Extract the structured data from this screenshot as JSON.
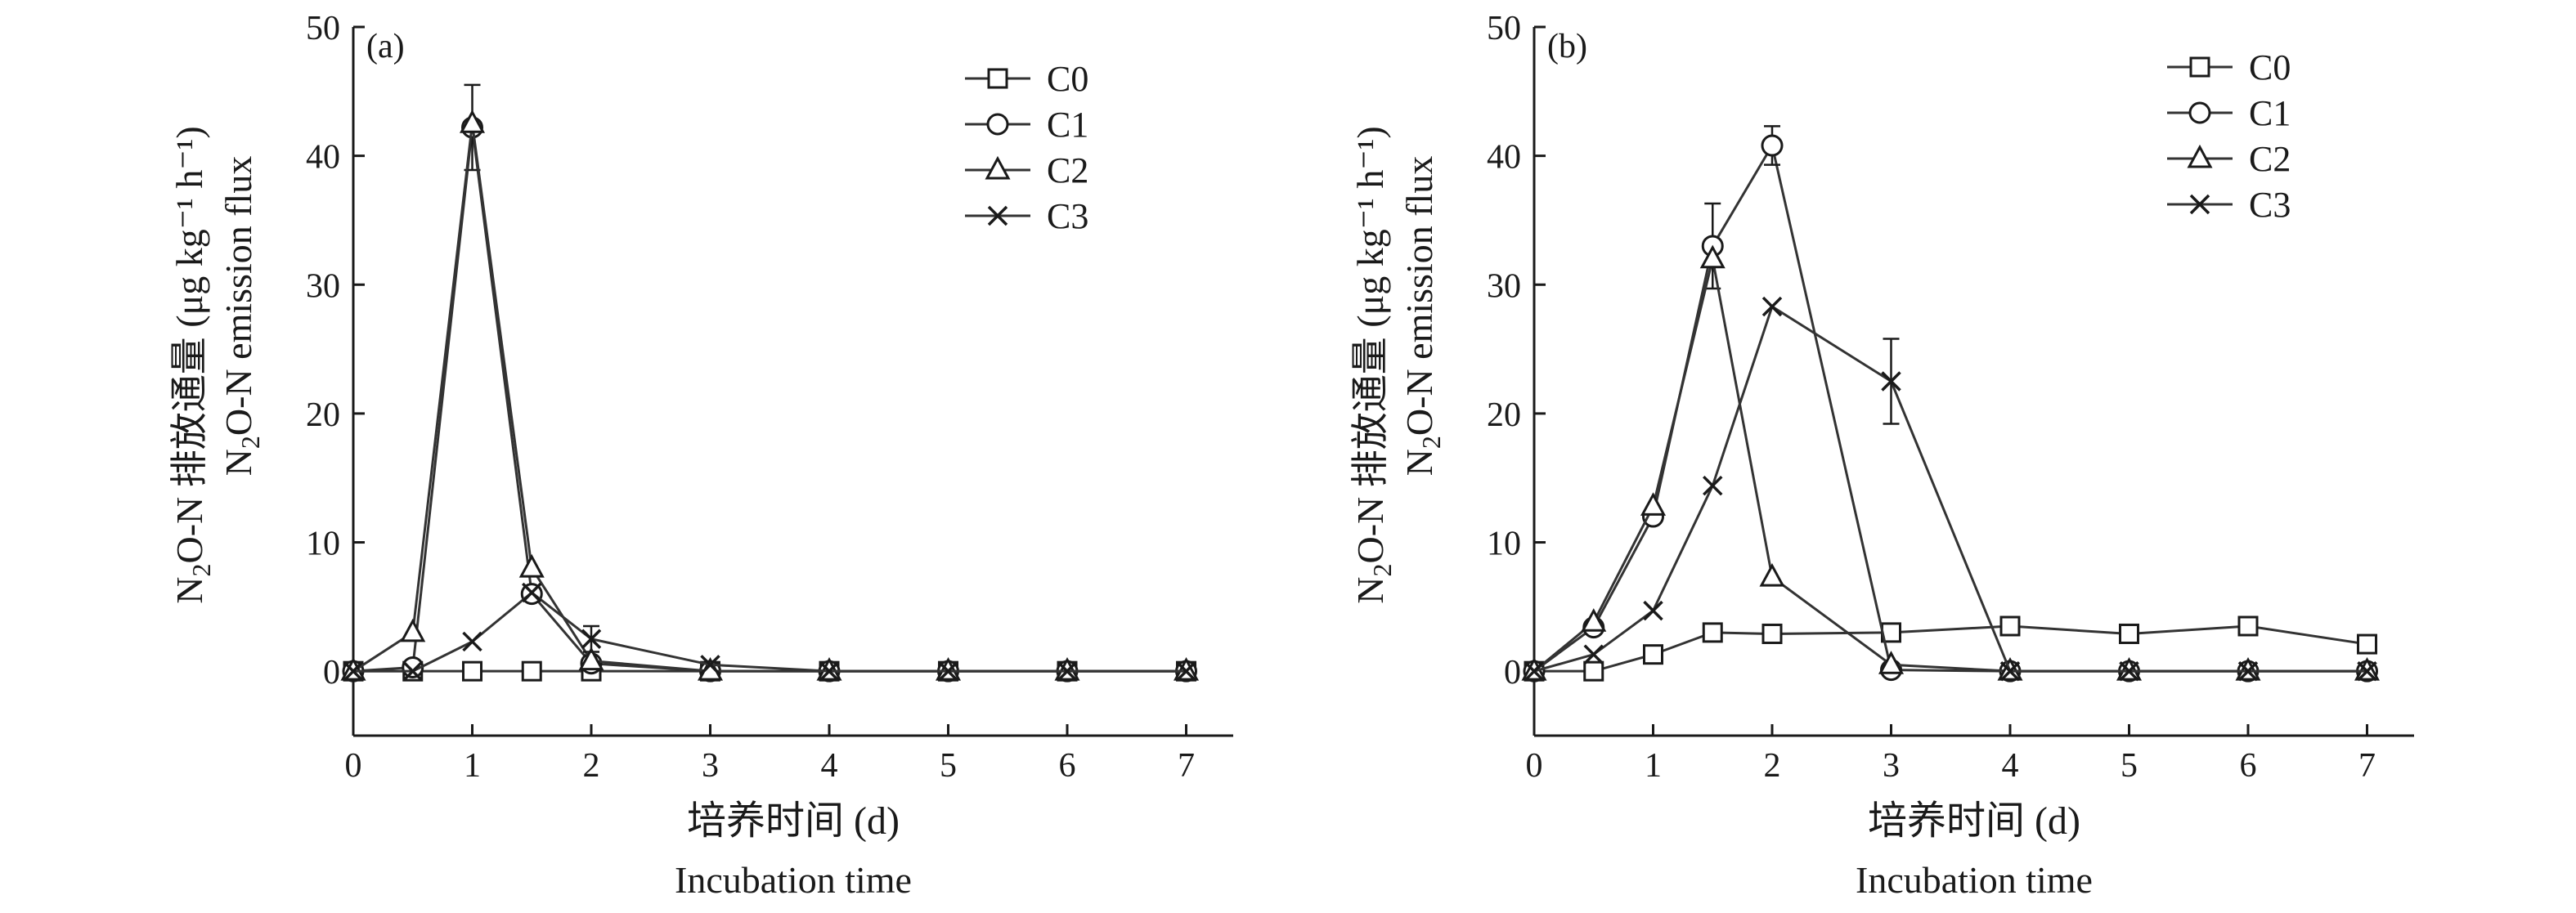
{
  "chart_data": [
    {
      "type": "line",
      "panel_label": "(a)",
      "ylabel_cn": "排放通量",
      "ylabel_en": "emission flux",
      "ylabel_unit": "(μg kg⁻¹ h⁻¹)",
      "xlabel_cn": "培养时间 (d)",
      "xlabel_en": "Incubation time",
      "xlim": [
        0,
        7.5
      ],
      "ylim": [
        -5,
        50
      ],
      "xticks": [
        0,
        1,
        2,
        3,
        4,
        5,
        6,
        7
      ],
      "yticks": [
        0,
        10,
        20,
        30,
        40,
        50
      ],
      "x": [
        0,
        0.5,
        1,
        1.5,
        2,
        3,
        4,
        5,
        6,
        7
      ],
      "legend_position": "top-right",
      "series": [
        {
          "name": "C0",
          "marker": "square",
          "values": [
            0,
            0,
            0,
            0,
            0,
            0,
            0,
            0,
            0,
            0
          ]
        },
        {
          "name": "C1",
          "marker": "circle",
          "values": [
            0,
            0.3,
            42.2,
            6.0,
            0.6,
            0,
            0,
            0,
            0,
            0
          ],
          "err": [
            0,
            0,
            3.3,
            0.5,
            0,
            0,
            0,
            0,
            0,
            0
          ]
        },
        {
          "name": "C2",
          "marker": "triangle",
          "values": [
            0,
            3.0,
            42.5,
            8.0,
            0.8,
            0,
            0,
            0,
            0,
            0
          ]
        },
        {
          "name": "C3",
          "marker": "x",
          "values": [
            0,
            0,
            2.3,
            6.1,
            2.5,
            0.5,
            0,
            0,
            0,
            0
          ],
          "err": [
            0,
            0,
            0,
            0,
            1.0,
            0,
            0,
            0,
            0,
            0
          ]
        }
      ]
    },
    {
      "type": "line",
      "panel_label": "(b)",
      "ylabel_cn": "排放通量",
      "ylabel_en": "emission flux",
      "ylabel_unit": "(μg kg⁻¹ h⁻¹)",
      "xlabel_cn": "培养时间 (d)",
      "xlabel_en": "Incubation time",
      "xlim": [
        0,
        7.5
      ],
      "ylim": [
        -5,
        50
      ],
      "xticks": [
        0,
        1,
        2,
        3,
        4,
        5,
        6,
        7
      ],
      "yticks": [
        0,
        10,
        20,
        30,
        40,
        50
      ],
      "x": [
        0,
        0.5,
        1,
        1.5,
        2,
        3,
        4,
        5,
        6,
        7
      ],
      "legend_position": "top-right",
      "series": [
        {
          "name": "C0",
          "marker": "square",
          "values": [
            0,
            0,
            1.3,
            3.0,
            2.9,
            3.0,
            3.5,
            2.9,
            3.5,
            2.1
          ]
        },
        {
          "name": "C1",
          "marker": "circle",
          "values": [
            0,
            3.4,
            12.0,
            33.0,
            40.8,
            0.1,
            0,
            0,
            0,
            0
          ],
          "err": [
            0,
            0,
            0,
            3.3,
            1.5,
            0,
            0,
            0,
            0,
            0
          ]
        },
        {
          "name": "C2",
          "marker": "triangle",
          "values": [
            0,
            3.8,
            12.8,
            32.0,
            7.3,
            0.5,
            0,
            0,
            0,
            0
          ]
        },
        {
          "name": "C3",
          "marker": "x",
          "values": [
            0,
            1.3,
            4.7,
            14.4,
            28.3,
            22.5,
            0,
            0,
            0,
            0
          ],
          "err": [
            0,
            0,
            0,
            0,
            0,
            3.3,
            0,
            0,
            0,
            0
          ]
        }
      ]
    }
  ]
}
